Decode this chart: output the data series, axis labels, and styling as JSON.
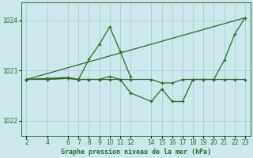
{
  "bg_color": "#cce8ec",
  "grid_color": "#aacccc",
  "line_color": "#2d6a2d",
  "xlabel": "Graphe pression niveau de la mer (hPa)",
  "xlim": [
    1.5,
    23.5
  ],
  "ylim": [
    1021.7,
    1024.35
  ],
  "xticks": [
    2,
    4,
    6,
    7,
    8,
    9,
    10,
    11,
    12,
    14,
    15,
    16,
    17,
    18,
    19,
    20,
    21,
    22,
    23
  ],
  "yticks": [
    1022,
    1023,
    1024
  ],
  "line1_x": [
    2,
    4,
    6,
    7,
    8,
    9,
    10,
    11,
    12
  ],
  "line1_y": [
    1022.82,
    1022.84,
    1022.86,
    1022.82,
    1023.22,
    1023.52,
    1023.87,
    1023.38,
    1022.87
  ],
  "line2_x": [
    2,
    4,
    6,
    7,
    8,
    9,
    10,
    11,
    12,
    14,
    15,
    16,
    17,
    18,
    19,
    20,
    21,
    22,
    23
  ],
  "line2_y": [
    1022.82,
    1022.82,
    1022.84,
    1022.82,
    1022.82,
    1022.82,
    1022.82,
    1022.82,
    1022.82,
    1022.82,
    1022.75,
    1022.75,
    1022.82,
    1022.82,
    1022.82,
    1022.82,
    1022.82,
    1022.82,
    1022.82
  ],
  "line3_x": [
    2,
    6,
    7,
    8,
    9,
    10,
    11,
    12,
    14,
    15,
    16,
    17,
    18,
    19,
    20,
    21,
    22,
    23
  ],
  "line3_y": [
    1022.82,
    1022.84,
    1022.82,
    1022.82,
    1022.82,
    1022.88,
    1022.82,
    1022.55,
    1022.38,
    1022.63,
    1022.38,
    1022.38,
    1022.82,
    1022.82,
    1022.82,
    1023.2,
    1023.72,
    1024.05
  ],
  "line4_x": [
    2,
    23
  ],
  "line4_y": [
    1022.82,
    1024.05
  ]
}
